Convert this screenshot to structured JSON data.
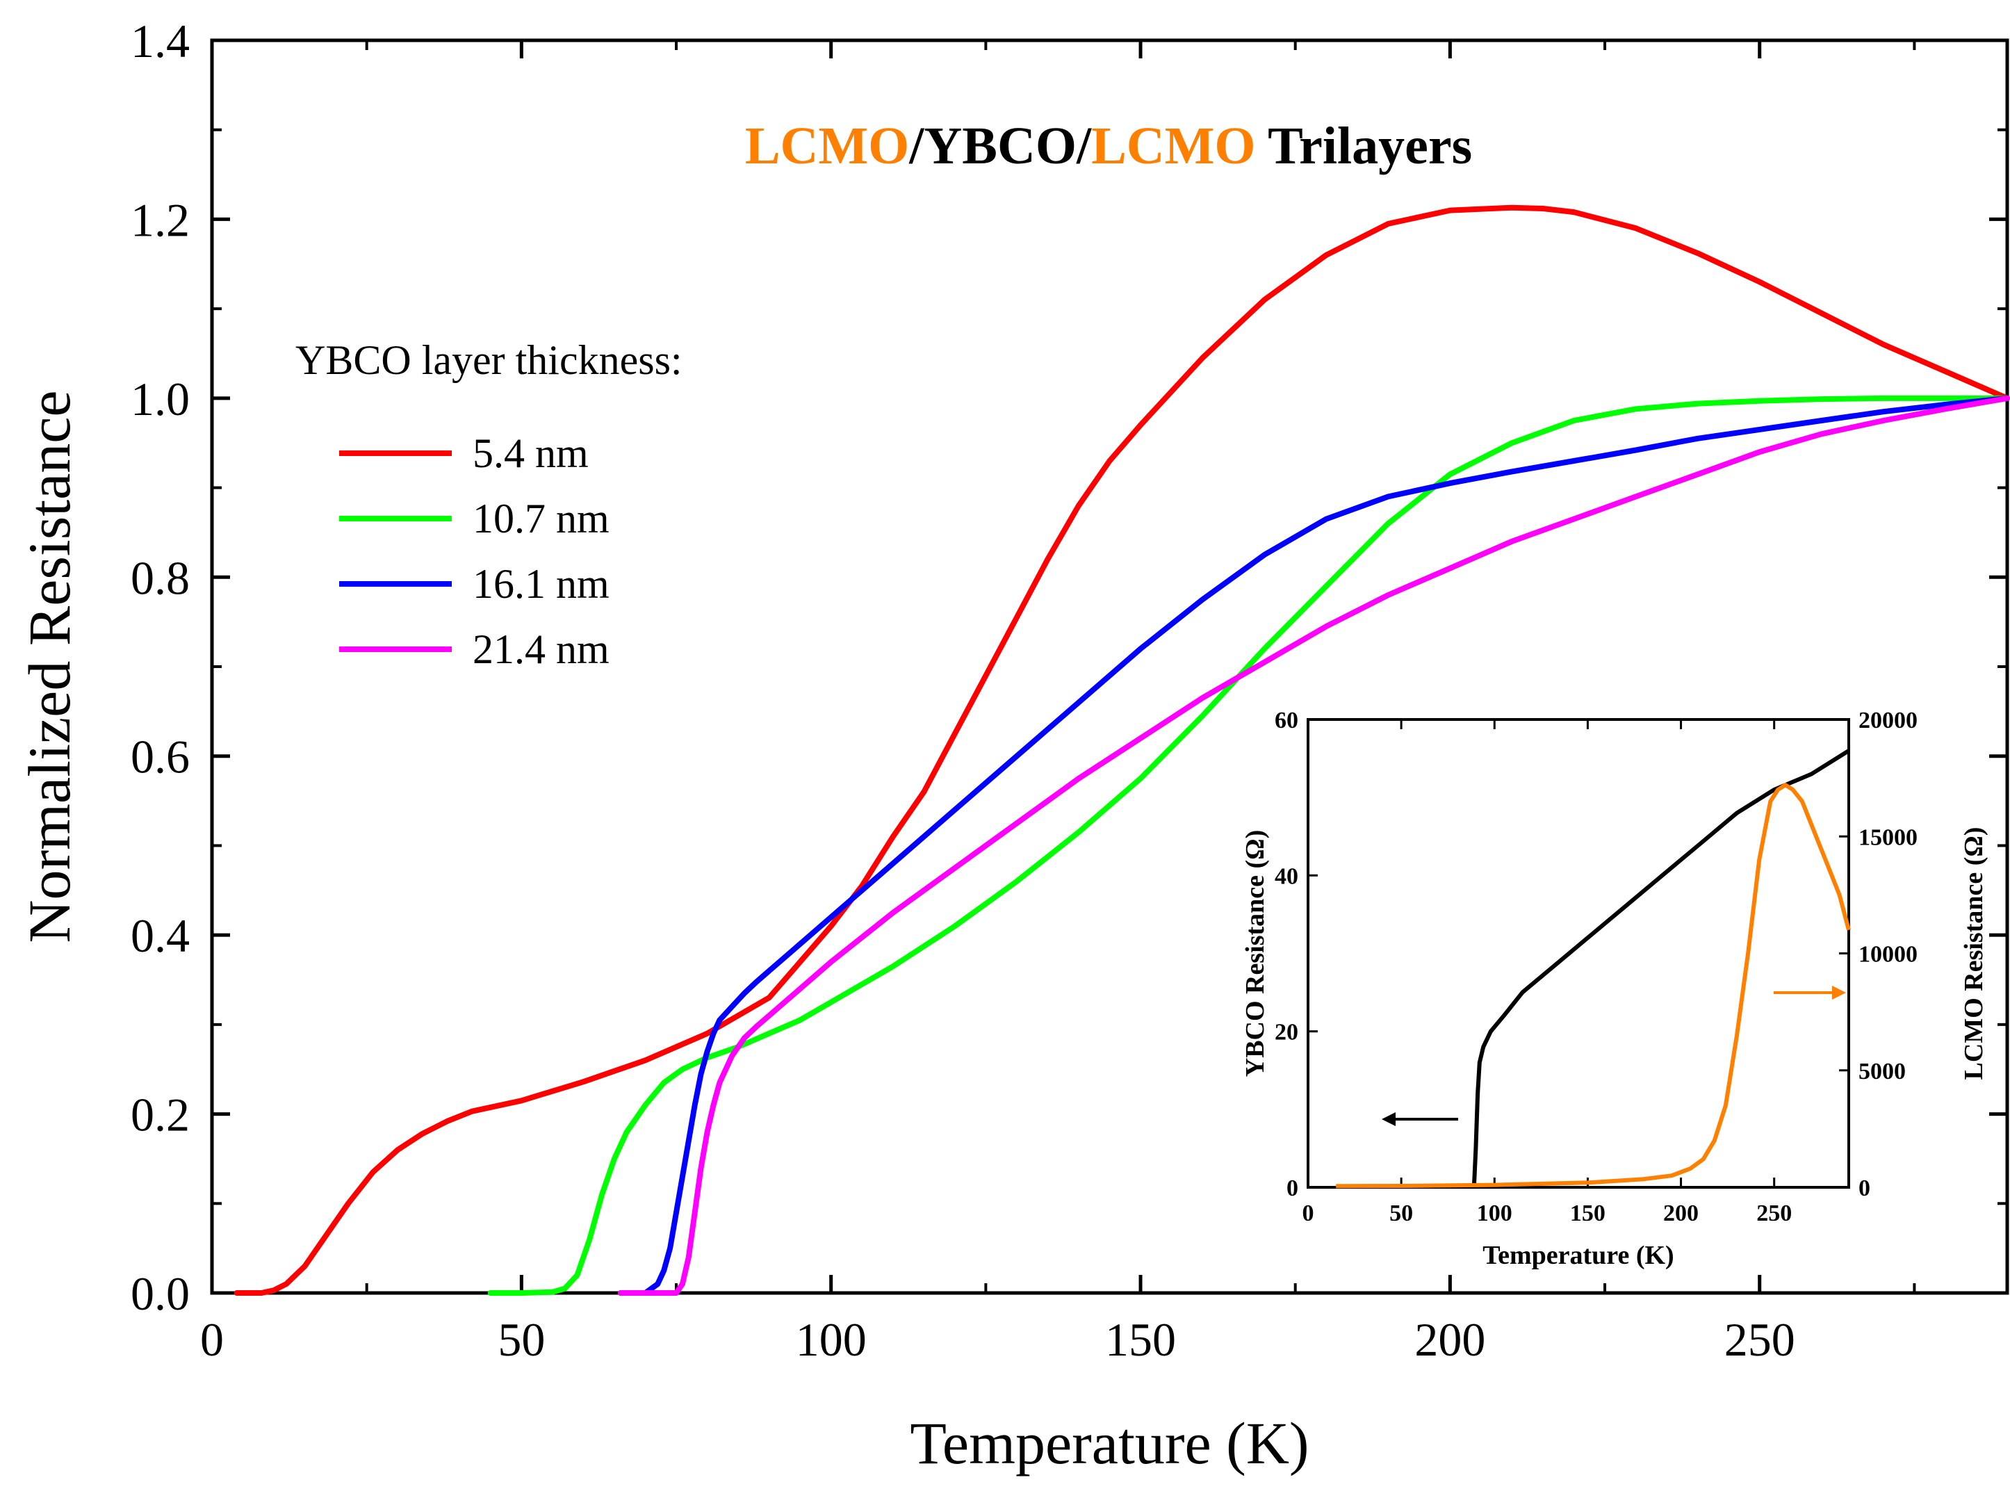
{
  "chart_data": [
    {
      "type": "line",
      "title_parts": [
        {
          "text": "LCMO",
          "color": "#ff8000"
        },
        {
          "text": "/YBCO/",
          "color": "#000000"
        },
        {
          "text": "LCMO",
          "color": "#ff8000"
        },
        {
          "text": " Trilayers",
          "color": "#000000"
        }
      ],
      "xlabel": "Temperature (K)",
      "ylabel": "Normalized Resistance",
      "xlim": [
        0,
        290
      ],
      "ylim": [
        0,
        1.4
      ],
      "xticks": [
        "0",
        "50",
        "100",
        "150",
        "200",
        "250"
      ],
      "yticks": [
        "0.0",
        "0.2",
        "0.4",
        "0.6",
        "0.8",
        "1.0",
        "1.2",
        "1.4"
      ],
      "legend_title": "YBCO layer thickness:",
      "legend_position": "left",
      "series": [
        {
          "name": "5.4 nm",
          "color": "#ff0000",
          "x": [
            4,
            8,
            10,
            12,
            15,
            18,
            22,
            26,
            30,
            34,
            38,
            42,
            50,
            60,
            70,
            80,
            90,
            95,
            100,
            105,
            110,
            115,
            120,
            125,
            130,
            135,
            140,
            145,
            150,
            160,
            170,
            180,
            190,
            200,
            210,
            215,
            220,
            230,
            240,
            250,
            260,
            270,
            280,
            290
          ],
          "y": [
            0,
            0,
            0.003,
            0.01,
            0.03,
            0.06,
            0.1,
            0.135,
            0.16,
            0.178,
            0.192,
            0.203,
            0.215,
            0.236,
            0.26,
            0.29,
            0.33,
            0.37,
            0.41,
            0.455,
            0.51,
            0.56,
            0.625,
            0.69,
            0.755,
            0.82,
            0.88,
            0.93,
            0.97,
            1.045,
            1.11,
            1.16,
            1.195,
            1.21,
            1.213,
            1.212,
            1.208,
            1.19,
            1.162,
            1.13,
            1.095,
            1.06,
            1.03,
            1.0
          ]
        },
        {
          "name": "10.7 nm",
          "color": "#00ff00",
          "x": [
            45,
            50,
            55,
            57,
            59,
            61,
            63,
            65,
            67,
            70,
            73,
            76,
            80,
            85,
            90,
            95,
            100,
            110,
            120,
            130,
            140,
            150,
            160,
            170,
            180,
            190,
            200,
            210,
            220,
            230,
            240,
            250,
            260,
            270,
            280,
            290
          ],
          "y": [
            0,
            0,
            0.001,
            0.005,
            0.02,
            0.06,
            0.11,
            0.15,
            0.18,
            0.21,
            0.235,
            0.25,
            0.263,
            0.275,
            0.29,
            0.305,
            0.325,
            0.365,
            0.41,
            0.46,
            0.515,
            0.575,
            0.645,
            0.72,
            0.79,
            0.86,
            0.915,
            0.95,
            0.975,
            0.988,
            0.994,
            0.997,
            0.999,
            1.0,
            1.0,
            1.0
          ]
        },
        {
          "name": "16.1 nm",
          "color": "#0000ff",
          "x": [
            66,
            70,
            72,
            73,
            74,
            75,
            76,
            77,
            78,
            79,
            80,
            81,
            82,
            84,
            86,
            88,
            90,
            95,
            100,
            110,
            120,
            130,
            140,
            150,
            160,
            170,
            180,
            190,
            200,
            210,
            220,
            230,
            240,
            250,
            260,
            270,
            280,
            290
          ],
          "y": [
            0,
            0,
            0.01,
            0.025,
            0.05,
            0.09,
            0.13,
            0.17,
            0.21,
            0.245,
            0.27,
            0.29,
            0.305,
            0.32,
            0.335,
            0.348,
            0.36,
            0.39,
            0.42,
            0.48,
            0.54,
            0.6,
            0.66,
            0.72,
            0.775,
            0.825,
            0.865,
            0.89,
            0.905,
            0.918,
            0.93,
            0.942,
            0.955,
            0.965,
            0.975,
            0.985,
            0.993,
            1.0
          ]
        },
        {
          "name": "21.4 nm",
          "color": "#ff00ff",
          "x": [
            66,
            75,
            76,
            77,
            78,
            79,
            80,
            81,
            82,
            84,
            86,
            88,
            90,
            95,
            100,
            110,
            120,
            130,
            140,
            150,
            160,
            170,
            180,
            190,
            200,
            210,
            220,
            230,
            240,
            250,
            260,
            270,
            280,
            290
          ],
          "y": [
            0,
            0,
            0.01,
            0.04,
            0.09,
            0.14,
            0.18,
            0.21,
            0.235,
            0.265,
            0.285,
            0.298,
            0.31,
            0.34,
            0.37,
            0.425,
            0.475,
            0.525,
            0.575,
            0.62,
            0.665,
            0.705,
            0.745,
            0.78,
            0.81,
            0.84,
            0.865,
            0.89,
            0.915,
            0.94,
            0.96,
            0.975,
            0.988,
            1.0
          ]
        }
      ]
    },
    {
      "type": "line",
      "inset": true,
      "xlabel": "Temperature (K)",
      "ylabel_left": "YBCO Resistance (Ω)",
      "ylabel_right": "LCMO Resistance (Ω)",
      "xlim": [
        0,
        290
      ],
      "ylim_left": [
        0,
        60
      ],
      "ylim_right": [
        0,
        20000
      ],
      "xticks": [
        "0",
        "50",
        "100",
        "150",
        "200",
        "250"
      ],
      "yticks_left": [
        "0",
        "20",
        "40",
        "60"
      ],
      "yticks_right": [
        "0",
        "5000",
        "10000",
        "15000",
        "20000"
      ],
      "series": [
        {
          "name": "YBCO",
          "axis": "left",
          "color": "#000000",
          "x": [
            89,
            90,
            91,
            92,
            94,
            98,
            105,
            115,
            130,
            150,
            170,
            190,
            210,
            230,
            250,
            270,
            290
          ],
          "y": [
            0,
            5,
            12,
            16,
            18,
            20,
            22,
            25,
            28,
            32,
            36,
            40,
            44,
            48,
            51,
            53,
            56
          ]
        },
        {
          "name": "LCMO",
          "axis": "right",
          "color": "#ff8000",
          "x": [
            15,
            50,
            100,
            150,
            180,
            195,
            205,
            212,
            218,
            224,
            230,
            236,
            242,
            248,
            252,
            256,
            260,
            265,
            270,
            275,
            280,
            285,
            290
          ],
          "y": [
            50,
            60,
            100,
            200,
            350,
            500,
            800,
            1200,
            2000,
            3500,
            6500,
            10000,
            14000,
            16500,
            17000,
            17200,
            17000,
            16500,
            15500,
            14500,
            13500,
            12500,
            11000
          ]
        }
      ]
    }
  ]
}
